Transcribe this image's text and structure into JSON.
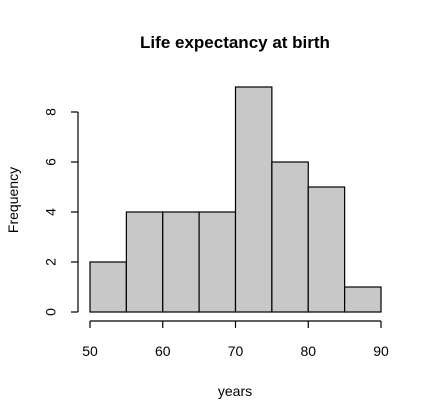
{
  "chart_data": {
    "type": "histogram",
    "title": "Life expectancy at birth",
    "xlabel": "years",
    "ylabel": "Frequency",
    "bins": [
      {
        "from": 50,
        "to": 55,
        "count": 2
      },
      {
        "from": 55,
        "to": 60,
        "count": 4
      },
      {
        "from": 60,
        "to": 65,
        "count": 4
      },
      {
        "from": 65,
        "to": 70,
        "count": 4
      },
      {
        "from": 70,
        "to": 75,
        "count": 9
      },
      {
        "from": 75,
        "to": 80,
        "count": 6
      },
      {
        "from": 80,
        "to": 85,
        "count": 5
      },
      {
        "from": 85,
        "to": 90,
        "count": 1
      }
    ],
    "x_ticks": [
      50,
      60,
      70,
      80,
      90
    ],
    "y_ticks": [
      0,
      2,
      4,
      6,
      8
    ],
    "xlim": [
      50,
      90
    ],
    "ylim": [
      0,
      9
    ],
    "bar_color": "#c8c8c8",
    "grid": false,
    "legend": "none"
  }
}
